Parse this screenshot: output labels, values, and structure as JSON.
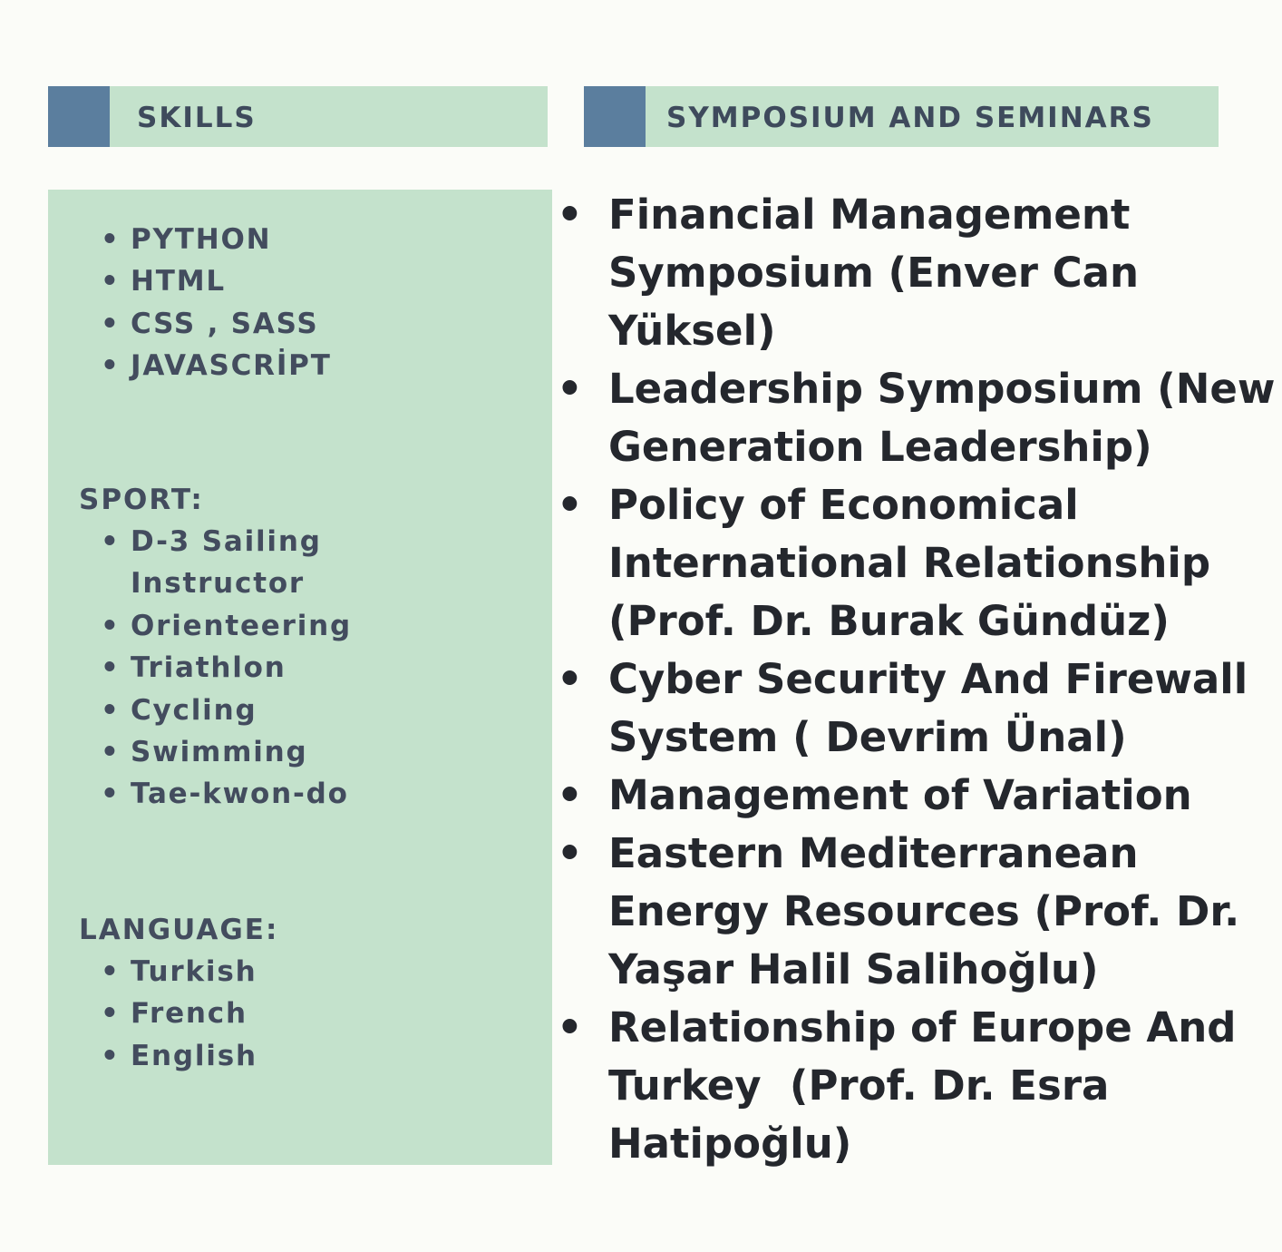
{
  "skills_header": {
    "title": "SKILLS"
  },
  "symposium_header": {
    "title": "SYMPOSIUM AND SEMINARS"
  },
  "bullet": "•",
  "skills": {
    "items": [
      "PYTHON",
      "HTML",
      "CSS , SASS",
      "JAVASCRİPT"
    ],
    "sport_label": "SPORT:",
    "sport_items": [
      "D-3 Sailing",
      "Instructor",
      "Orienteering",
      "Triathlon",
      "Cycling",
      "Swimming",
      "Tae-kwon-do"
    ],
    "language_label": "LANGUAGE:",
    "language_items": [
      "Turkish",
      "French",
      "English"
    ]
  },
  "symposium": {
    "items": [
      {
        "lines": [
          "Financial Management",
          "Symposium (Enver Can",
          "Yüksel)"
        ]
      },
      {
        "lines": [
          "Leadership Symposium (New",
          "Generation Leadership)"
        ]
      },
      {
        "lines": [
          "Policy of Economical",
          "International Relationship",
          "(Prof. Dr. Burak Gündüz)"
        ]
      },
      {
        "lines": [
          "Cyber Security And Firewall",
          "System ( Devrim Ünal)"
        ]
      },
      {
        "lines": [
          "Management of Variation"
        ]
      },
      {
        "lines": [
          "Eastern Mediterranean",
          "Energy Resources (Prof. Dr.",
          "Yaşar Halil Salihoğlu)"
        ]
      },
      {
        "lines": [
          "Relationship of Europe And",
          "Turkey  (Prof. Dr. Esra",
          "Hatipoğlu)"
        ]
      }
    ]
  },
  "colors": {
    "background": "#fbfcf8",
    "panel_green": "#c4e2cc",
    "accent_blue": "#5b7e9e",
    "heading_text": "#3e4a5c",
    "panel_text": "#434c5e",
    "body_text": "#24272d"
  }
}
